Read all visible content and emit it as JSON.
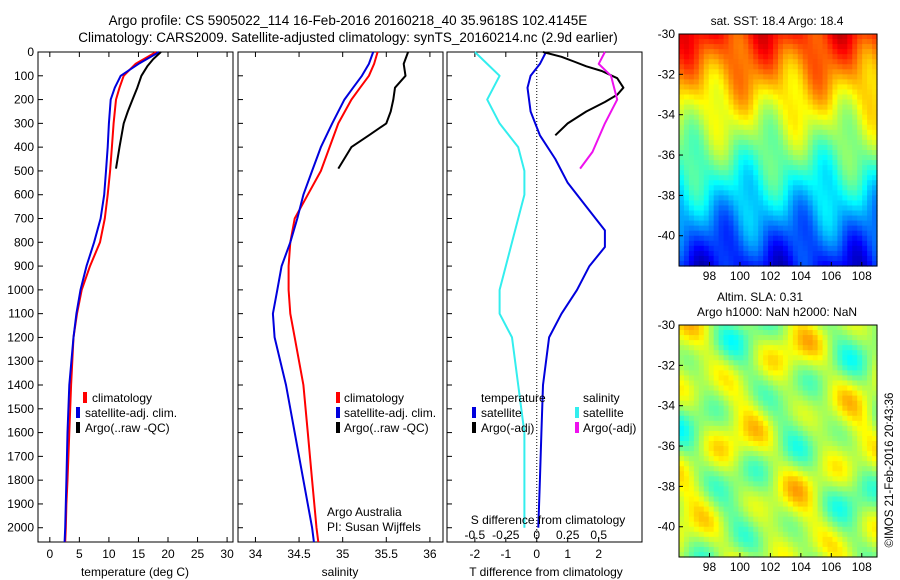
{
  "header": {
    "line1": "Argo profile: CS 5905022_114 16-Feb-2016 20160218_40 35.9618S 102.4145E",
    "line2": "Climatology: CARS2009. Satellite-adjusted climatology: synTS_20160214.nc (2.9d earlier)"
  },
  "colors": {
    "climatology": "#ff0000",
    "satellite": "#0000dd",
    "argo": "#000000",
    "satellite_s": "#33eeee",
    "argo_s": "#ee11ee"
  },
  "depth_ticks": [
    "0",
    "100",
    "200",
    "300",
    "400",
    "500",
    "600",
    "700",
    "800",
    "900",
    "1000",
    "1100",
    "1200",
    "1300",
    "1400",
    "1500",
    "1600",
    "1700",
    "1800",
    "1900",
    "2000"
  ],
  "chart_data": [
    {
      "type": "line",
      "id": "temperature",
      "xlabel": "temperature (deg C)",
      "ylabel": "",
      "xlim": [
        -2,
        31
      ],
      "ylim": [
        2060,
        0
      ],
      "x_ticks": [
        "0",
        "5",
        "10",
        "15",
        "20",
        "25",
        "30"
      ],
      "series": [
        {
          "name": "climatology",
          "key": "climatology",
          "x": [
            18,
            14.5,
            12.5,
            11.8,
            11.2,
            10.8,
            10.5,
            10.2,
            9.8,
            9.3,
            8.5,
            6.8,
            5.4,
            4.6,
            4.0,
            3.6,
            3.3,
            3.0,
            2.8,
            2.7,
            2.6
          ],
          "y": [
            0,
            50,
            100,
            150,
            200,
            300,
            400,
            500,
            600,
            700,
            800,
            900,
            1000,
            1100,
            1200,
            1400,
            1600,
            1800,
            1900,
            2000,
            2060
          ]
        },
        {
          "name": "satellite-adj. clim.",
          "key": "satellite",
          "x": [
            18.5,
            15,
            12,
            11,
            10.3,
            10,
            9.8,
            9.5,
            9.2,
            8.6,
            7.5,
            6.2,
            5.2,
            4.5,
            4.0,
            3.3,
            3.0,
            2.8,
            2.6,
            2.5
          ],
          "y": [
            0,
            50,
            100,
            150,
            200,
            300,
            400,
            500,
            600,
            700,
            800,
            900,
            1000,
            1100,
            1200,
            1400,
            1600,
            1800,
            2000,
            2060
          ]
        },
        {
          "name": "Argo(..raw -QC)",
          "key": "argo",
          "x": [
            18.8,
            17.5,
            16.5,
            15.5,
            14.8,
            14,
            13.2,
            12.5,
            11.8,
            11.2
          ],
          "y": [
            0,
            30,
            60,
            100,
            150,
            200,
            250,
            300,
            400,
            490
          ]
        }
      ]
    },
    {
      "type": "line",
      "id": "salinity",
      "xlabel": "salinity",
      "xlim": [
        33.8,
        36.15
      ],
      "ylim": [
        2060,
        0
      ],
      "x_ticks": [
        "34",
        "34.5",
        "35",
        "35.5",
        "36"
      ],
      "series": [
        {
          "name": "climatology",
          "key": "climatology",
          "x": [
            35.4,
            35.36,
            35.3,
            35.2,
            35.1,
            34.95,
            34.85,
            34.75,
            34.6,
            34.45,
            34.4,
            34.38,
            34.38,
            34.4,
            34.45,
            34.55,
            34.6,
            34.65,
            34.7,
            34.72
          ],
          "y": [
            0,
            50,
            100,
            150,
            200,
            300,
            400,
            500,
            600,
            700,
            800,
            900,
            1000,
            1100,
            1200,
            1400,
            1600,
            1800,
            2000,
            2060
          ]
        },
        {
          "name": "satellite-adj. clim.",
          "key": "satellite",
          "x": [
            35.35,
            35.3,
            35.22,
            35.12,
            35.02,
            34.88,
            34.75,
            34.65,
            34.55,
            34.48,
            34.4,
            34.3,
            34.25,
            34.2,
            34.22,
            34.35,
            34.45,
            34.55,
            34.65,
            34.67
          ],
          "y": [
            0,
            50,
            100,
            150,
            200,
            300,
            400,
            500,
            600,
            700,
            800,
            900,
            1000,
            1100,
            1200,
            1400,
            1600,
            1800,
            2000,
            2060
          ]
        },
        {
          "name": "Argo(..raw -QC)",
          "key": "argo",
          "x": [
            35.75,
            35.7,
            35.72,
            35.6,
            35.58,
            35.55,
            35.5,
            35.3,
            35.1,
            34.95
          ],
          "y": [
            0,
            50,
            100,
            150,
            200,
            250,
            300,
            350,
            400,
            490
          ]
        }
      ]
    },
    {
      "type": "line",
      "id": "difference",
      "xlabel": "T difference from climatology",
      "xlabel2": "S difference from climatology",
      "xlim": [
        -2.9,
        3.4
      ],
      "ylim": [
        2060,
        0
      ],
      "x_ticks": [
        "-2",
        "-1",
        "0",
        "1",
        "2"
      ],
      "s_ticks": [
        "-0.5",
        "-0.25",
        "0",
        "0.25",
        "0.5"
      ],
      "legend_left_title": "temperature",
      "legend_right_title": "salinity",
      "series": [
        {
          "name": "satellite",
          "key": "satellite",
          "group": "temperature",
          "x": [
            0.3,
            0.1,
            -0.2,
            -0.3,
            -0.2,
            0.1,
            0.6,
            1.0,
            1.6,
            2.2,
            2.2,
            1.7,
            1.3,
            0.8,
            0.4,
            0.2,
            0.15,
            0.1,
            0.05
          ],
          "y": [
            0,
            50,
            100,
            150,
            250,
            350,
            450,
            550,
            650,
            750,
            820,
            900,
            1000,
            1100,
            1200,
            1400,
            1600,
            1800,
            2000
          ]
        },
        {
          "name": "Argo(-adj)",
          "key": "argo",
          "group": "temperature",
          "x": [
            0.2,
            0.8,
            1.2,
            1.6,
            2.1,
            2.6,
            2.8,
            2.6,
            2.2,
            1.6,
            1.0,
            0.6
          ],
          "y": [
            0,
            20,
            40,
            60,
            80,
            110,
            150,
            180,
            210,
            250,
            300,
            350
          ]
        },
        {
          "name": "satellite",
          "key": "satellite_s",
          "group": "salinity",
          "x": [
            -0.5,
            -0.4,
            -0.3,
            -0.4,
            -0.3,
            -0.15,
            -0.1,
            -0.1,
            -0.15,
            -0.2,
            -0.25,
            -0.3,
            -0.3,
            -0.2,
            -0.15,
            -0.1,
            -0.1
          ],
          "y": [
            0,
            50,
            100,
            200,
            300,
            400,
            500,
            600,
            700,
            800,
            900,
            1000,
            1100,
            1200,
            1400,
            1600,
            2000
          ]
        },
        {
          "name": "Argo(-adj)",
          "key": "argo_s",
          "group": "salinity",
          "x": [
            0.55,
            0.5,
            0.6,
            0.65,
            0.55,
            0.5,
            0.45,
            0.35
          ],
          "y": [
            0,
            50,
            100,
            200,
            300,
            360,
            420,
            490
          ]
        }
      ]
    },
    {
      "type": "heatmap",
      "id": "sst_map",
      "title": "sat. SST: 18.4 Argo: 18.4",
      "x_ticks": [
        "98",
        "100",
        "102",
        "104",
        "106",
        "108"
      ],
      "y_ticks": [
        "-30",
        "-32",
        "-34",
        "-36",
        "-38",
        "-40"
      ],
      "xlim": [
        96,
        109
      ],
      "ylim": [
        -41.5,
        -30
      ],
      "colormap": "jet"
    },
    {
      "type": "heatmap",
      "id": "sla_map",
      "title": "Altim. SLA: 0.31",
      "subtitle": "Argo h1000: NaN h2000: NaN",
      "x_ticks": [
        "98",
        "100",
        "102",
        "104",
        "106",
        "108"
      ],
      "y_ticks": [
        "-30",
        "-32",
        "-34",
        "-36",
        "-38",
        "-40"
      ],
      "xlim": [
        96,
        109
      ],
      "ylim": [
        -41.5,
        -30
      ],
      "colormap": "jet"
    }
  ],
  "annotations": {
    "group": "Argo Australia",
    "pi": "PI: Susan Wijffels",
    "copyright": "©IMOS 21-Feb-2016 20:43:36"
  }
}
